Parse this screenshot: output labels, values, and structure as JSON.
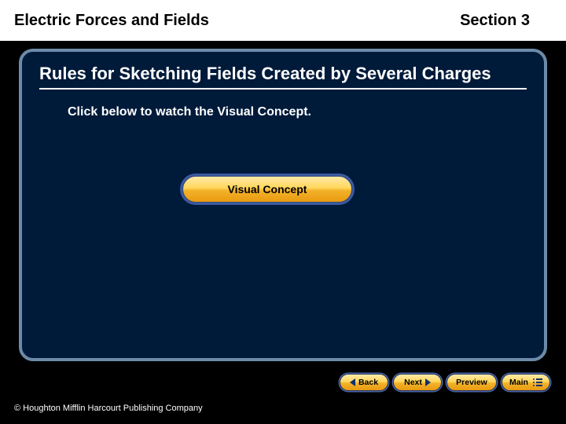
{
  "header": {
    "chapter": "Electric Forces and Fields",
    "section": "Section 3"
  },
  "slide": {
    "title": "Rules for Sketching Fields Created by Several Charges",
    "instruction": "Click below to watch the Visual Concept.",
    "button_label": "Visual Concept"
  },
  "nav": {
    "back": "Back",
    "next": "Next",
    "preview": "Preview",
    "main": "Main"
  },
  "footer": {
    "copyright": "© Houghton Mifflin Harcourt Publishing Company"
  },
  "colors": {
    "page_bg": "#000000",
    "header_bg": "#ffffff",
    "frame_border": "#6d8aa8",
    "frame_bg": "#001a3a",
    "text_light": "#ffffff",
    "text_dark": "#000000",
    "pill_gradient_top": "#ffe9a8",
    "pill_gradient_bottom": "#e99a10",
    "pill_outline": "#3c5aa0",
    "chevron": "#103070"
  }
}
